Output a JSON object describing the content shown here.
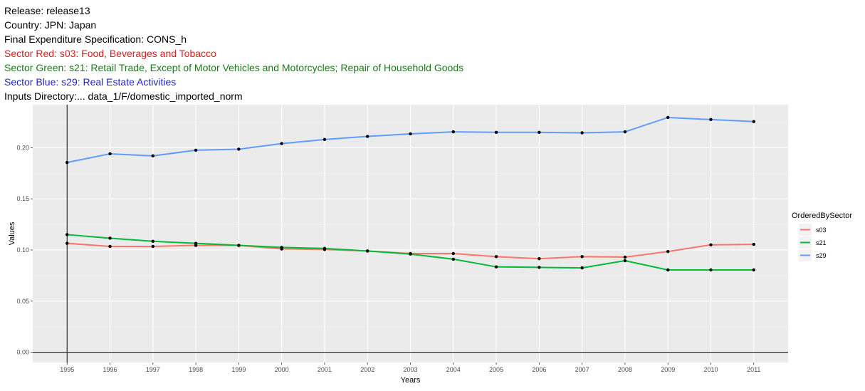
{
  "header": {
    "release": "Release: release13",
    "country": "Country: JPN: Japan",
    "spec": "Final Expenditure Specification: CONS_h",
    "sector_red": "Sector Red: s03: Food, Beverages and Tobacco",
    "sector_green": "Sector Green: s21: Retail Trade, Except of Motor Vehicles and Motorcycles; Repair of Household Goods",
    "sector_blue": "Sector Blue: s29: Real Estate Activities",
    "inputs": "Inputs Directory:... data_1/F/domestic_imported_norm"
  },
  "colors": {
    "red_text": "#e31a1c",
    "green_text": "#1a7a1a",
    "blue_text": "#1f1fd6",
    "s03": "#f8766d",
    "s21": "#00ba38",
    "s29": "#619cff"
  },
  "chart_data": {
    "type": "line",
    "xlabel": "Years",
    "ylabel": "Values",
    "legend_title": "OrderedBySector",
    "legend_position": "right",
    "grid": true,
    "x": [
      1995,
      1996,
      1997,
      1998,
      1999,
      2000,
      2001,
      2002,
      2003,
      2004,
      2005,
      2006,
      2007,
      2008,
      2009,
      2010,
      2011
    ],
    "xlim": [
      1994.2,
      2011.8
    ],
    "ylim": [
      -0.01,
      0.242
    ],
    "yticks": [
      0.0,
      0.05,
      0.1,
      0.15,
      0.2
    ],
    "ytick_labels": [
      "0.00",
      "0.05",
      "0.10",
      "0.15",
      "0.20"
    ],
    "vline_x": 1995,
    "hline_y": 0,
    "series": [
      {
        "name": "s03",
        "values": [
          0.1065,
          0.1035,
          0.1035,
          0.1045,
          0.1045,
          0.101,
          0.1005,
          0.099,
          0.0965,
          0.0965,
          0.0935,
          0.0915,
          0.0935,
          0.093,
          0.0985,
          0.105,
          0.1055
        ]
      },
      {
        "name": "s21",
        "values": [
          0.115,
          0.1115,
          0.1085,
          0.1065,
          0.1045,
          0.1025,
          0.1015,
          0.099,
          0.096,
          0.091,
          0.0835,
          0.083,
          0.0825,
          0.0895,
          0.0805,
          0.0805,
          0.0805
        ]
      },
      {
        "name": "s29",
        "values": [
          0.1855,
          0.194,
          0.192,
          0.1975,
          0.1985,
          0.204,
          0.208,
          0.211,
          0.2135,
          0.2155,
          0.215,
          0.215,
          0.2145,
          0.2155,
          0.2295,
          0.2275,
          0.2255
        ]
      }
    ]
  }
}
